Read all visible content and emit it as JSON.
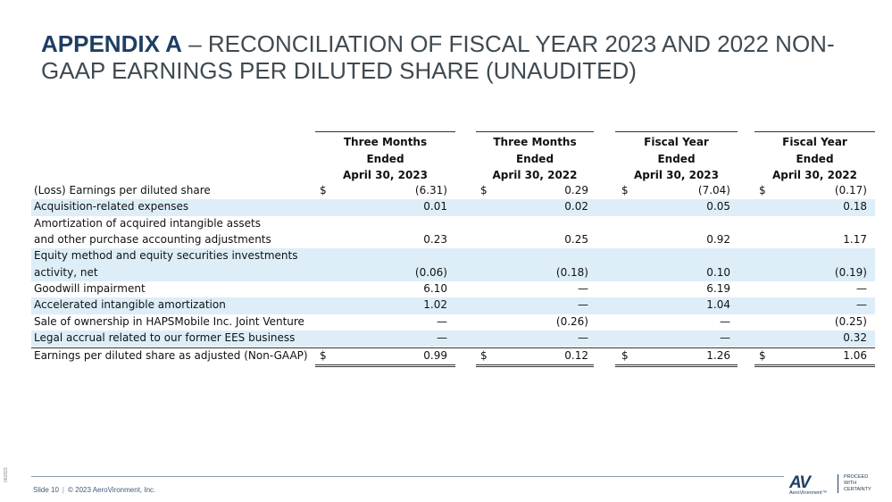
{
  "title": {
    "bold": "APPENDIX A",
    "rest": " – RECONCILIATION OF FISCAL YEAR 2023 AND 2022 NON-GAAP EARNINGS PER DILUTED SHARE (UNAUDITED)"
  },
  "columns": [
    {
      "l1": "Three Months",
      "l2": "Ended",
      "l3": "April 30, 2023"
    },
    {
      "l1": "Three Months",
      "l2": "Ended",
      "l3": "April 30, 2022"
    },
    {
      "l1": "Fiscal Year",
      "l2": "Ended",
      "l3": "April 30, 2023"
    },
    {
      "l1": "Fiscal Year",
      "l2": "Ended",
      "l3": "April 30, 2022"
    }
  ],
  "currency": "$",
  "rows": [
    {
      "label": "(Loss) Earnings per diluted share",
      "values": [
        "(6.31)",
        "0.29",
        "(7.04)",
        "(0.17)"
      ]
    },
    {
      "label": "Acquisition-related expenses",
      "values": [
        "0.01",
        "0.02",
        "0.05",
        "0.18"
      ]
    },
    {
      "label": "Amortization  of acquired intangible assets",
      "values": [
        "",
        "",
        "",
        ""
      ]
    },
    {
      "label": "and other purchase accounting adjustments",
      "values": [
        "0.23",
        "0.25",
        "0.92",
        "1.17"
      ]
    },
    {
      "label": "Equity method and equity securities investments",
      "values": [
        "",
        "",
        "",
        ""
      ]
    },
    {
      "label": "activity, net",
      "values": [
        "(0.06)",
        "(0.18)",
        "0.10",
        "(0.19)"
      ]
    },
    {
      "label": "Goodwill impairment",
      "values": [
        "6.10",
        "—",
        "6.19",
        "—"
      ]
    },
    {
      "label": "Accelerated intangible amortization",
      "values": [
        "1.02",
        "—",
        "1.04",
        "—"
      ]
    },
    {
      "label": "Sale of ownership in HAPSMobile Inc. Joint Venture",
      "values": [
        "—",
        "(0.26)",
        "—",
        "(0.25)"
      ]
    },
    {
      "label": "Legal accrual related to our former EES business",
      "values": [
        "—",
        "—",
        "—",
        "0.32"
      ]
    },
    {
      "label": "Earnings per diluted share as adjusted (Non-GAAP)",
      "values": [
        "0.99",
        "0.12",
        "1.26",
        "1.06"
      ]
    }
  ],
  "footer": {
    "slide": "Slide 10",
    "sep": "|",
    "copyright": "© 2023 AeroVironment, Inc.",
    "side_code": "062823"
  },
  "logo": {
    "mark": "AV",
    "name": "AeroVironment™",
    "tagline1": "PROCEED",
    "tagline2": "WITH",
    "tagline3": "CERTAINTY"
  }
}
